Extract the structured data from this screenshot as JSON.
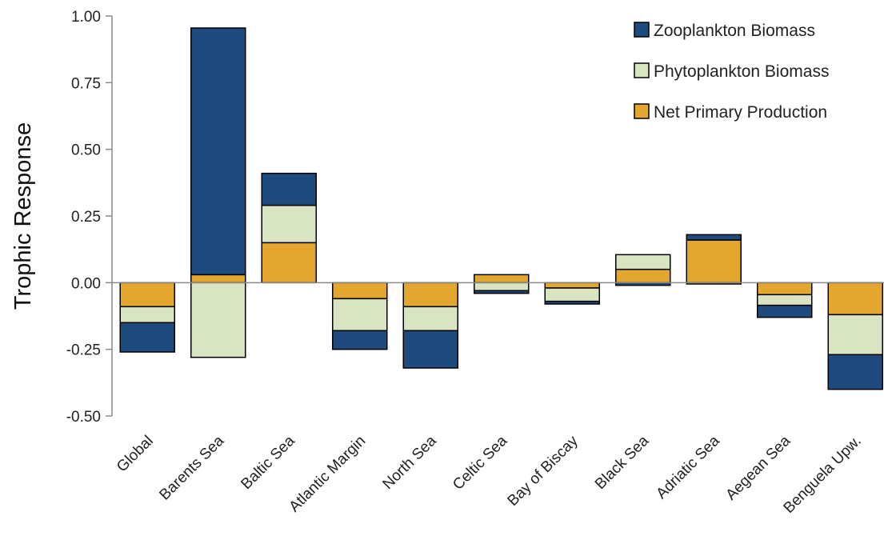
{
  "chart_data": {
    "type": "bar",
    "stacked": true,
    "title": "",
    "xlabel": "",
    "ylabel": "Trophic Response",
    "ylim": [
      -0.5,
      1.0
    ],
    "yticks": [
      "1.00",
      "0.75",
      "0.50",
      "0.25",
      "0.00",
      "-0.25",
      "-0.50"
    ],
    "ytick_values": [
      1.0,
      0.75,
      0.5,
      0.25,
      0.0,
      -0.25,
      -0.5
    ],
    "grid": false,
    "legend_position": "top-right",
    "categories": [
      "Global",
      "Barents Sea",
      "Baltic Sea",
      "Atlantic Margin",
      "North Sea",
      "Celtic Sea",
      "Bay of Biscay",
      "Black Sea",
      "Adriatic Sea",
      "Aegean Sea",
      "Benguela Upw."
    ],
    "series": [
      {
        "name": "Net Primary Production",
        "color": "#E3A72F",
        "values": [
          -0.09,
          0.03,
          0.15,
          -0.06,
          -0.09,
          0.03,
          -0.02,
          0.05,
          0.16,
          -0.045,
          -0.12
        ]
      },
      {
        "name": "Phytoplankton Biomass",
        "color": "#D9E4C2",
        "values": [
          -0.06,
          -0.28,
          0.14,
          -0.12,
          -0.09,
          -0.03,
          -0.05,
          0.055,
          -0.005,
          -0.04,
          -0.15
        ]
      },
      {
        "name": "Zooplankton Biomass",
        "color": "#1E4A7E",
        "values": [
          -0.11,
          0.925,
          0.12,
          -0.07,
          -0.14,
          -0.01,
          -0.01,
          -0.01,
          0.02,
          -0.045,
          -0.13
        ]
      }
    ],
    "legend_order": [
      "Zooplankton Biomass",
      "Phytoplankton Biomass",
      "Net Primary Production"
    ]
  }
}
